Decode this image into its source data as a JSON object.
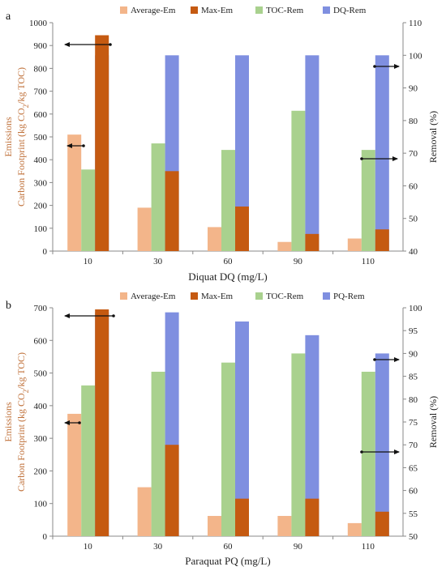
{
  "colors": {
    "Average-Em": "#f3b58a",
    "Max-Em": "#c55a11",
    "TOC-Rem": "#a9d18e",
    "DQ-Rem": "#7f8fe0",
    "PQ-Rem": "#7f8fe0",
    "axis": "#888888",
    "left_title": "#c0713a"
  },
  "chart_data": [
    {
      "type": "bar",
      "panel_label": "a",
      "categories": [
        "10",
        "30",
        "60",
        "90",
        "110"
      ],
      "xlabel": "Diquat DQ (mg/L)",
      "ylabel_line1": "Emissions",
      "ylabel_line2": "Carbon Footprint (kg CO",
      "ylabel_sub": "2",
      "ylabel_line2_tail": "/kg TOC)",
      "ylabel_right": "Removal (%)",
      "ylim": [
        0,
        1000
      ],
      "ylim_right": [
        40,
        110
      ],
      "yticks": [
        "0",
        "100",
        "200",
        "300",
        "400",
        "500",
        "600",
        "700",
        "800",
        "900",
        "1000"
      ],
      "yticks_right": [
        "40",
        "50",
        "60",
        "70",
        "80",
        "90",
        "100",
        "110"
      ],
      "legend": [
        "Average-Em",
        "Max-Em",
        "TOC-Rem",
        "DQ-Rem"
      ],
      "series": [
        {
          "name": "Average-Em",
          "axis": "left",
          "values": [
            510,
            190,
            105,
            40,
            55
          ]
        },
        {
          "name": "TOC-Rem",
          "axis": "right",
          "values": [
            65,
            73,
            71,
            83,
            71
          ]
        },
        {
          "name": "DQ-Rem",
          "axis": "right",
          "values": [
            100,
            100,
            100,
            100,
            100
          ]
        },
        {
          "name": "Max-Em",
          "axis": "left",
          "values": [
            945,
            350,
            195,
            75,
            95
          ]
        }
      ]
    },
    {
      "type": "bar",
      "panel_label": "b",
      "categories": [
        "10",
        "30",
        "60",
        "90",
        "110"
      ],
      "xlabel": "Paraquat PQ (mg/L)",
      "ylabel_line1": "Emissions",
      "ylabel_line2": "Carbon Footprint (kg CO",
      "ylabel_sub": "2",
      "ylabel_line2_tail": "/kg TOC)",
      "ylabel_right": "Removal (%)",
      "ylim": [
        0,
        700
      ],
      "ylim_right": [
        50,
        100
      ],
      "yticks": [
        "0",
        "100",
        "200",
        "300",
        "400",
        "500",
        "600",
        "700"
      ],
      "yticks_right": [
        "50",
        "55",
        "60",
        "65",
        "70",
        "75",
        "80",
        "85",
        "90",
        "95",
        "100"
      ],
      "legend": [
        "Average-Em",
        "Max-Em",
        "TOC-Rem",
        "PQ-Rem"
      ],
      "series": [
        {
          "name": "Average-Em",
          "axis": "left",
          "values": [
            375,
            150,
            62,
            62,
            40
          ]
        },
        {
          "name": "TOC-Rem",
          "axis": "right",
          "values": [
            83,
            86,
            88,
            90,
            86
          ]
        },
        {
          "name": "PQ-Rem",
          "axis": "right",
          "values": [
            99,
            99,
            97,
            94,
            90
          ]
        },
        {
          "name": "Max-Em",
          "axis": "left",
          "values": [
            695,
            280,
            115,
            115,
            75
          ]
        }
      ]
    }
  ]
}
